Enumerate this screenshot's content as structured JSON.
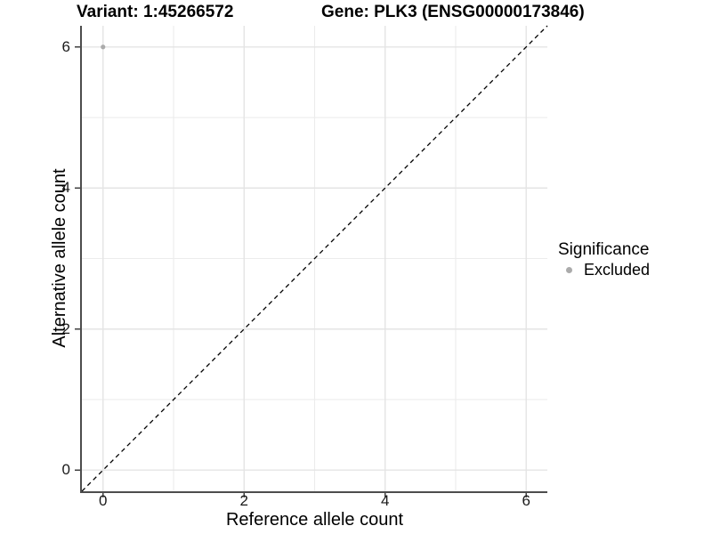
{
  "chart_data": {
    "type": "scatter",
    "title_left": "Variant: 1:45266572",
    "title_right": "Gene: PLK3 (ENSG00000173846)",
    "xlabel": "Reference allele count",
    "ylabel": "Alternative allele count",
    "xlim": [
      -0.3,
      6.3
    ],
    "ylim": [
      -0.3,
      6.3
    ],
    "x_major_ticks": [
      0,
      2,
      4,
      6
    ],
    "y_major_ticks": [
      0,
      2,
      4,
      6
    ],
    "x_minor_gridlines": [
      1,
      3,
      5
    ],
    "y_minor_gridlines": [
      1,
      3,
      5
    ],
    "grid": true,
    "points": [
      {
        "x": 0,
        "y": 6,
        "series": "Excluded"
      }
    ],
    "point_radius": 2.6,
    "reference_line": {
      "type": "abline",
      "slope": 1,
      "intercept": 0,
      "style": "dashed"
    },
    "series_colors": {
      "Excluded": "#ababab"
    },
    "style_colors": {
      "grid_major": "#e4e4e4",
      "grid_minor": "#ececec",
      "axis_line": "#4d4d4d",
      "tick_mark": "#333333",
      "reference_line": "#000000",
      "background": "#ffffff"
    },
    "legend": {
      "title": "Significance",
      "position": "right",
      "items": [
        {
          "label": "Excluded",
          "color": "#ababab"
        }
      ]
    }
  }
}
